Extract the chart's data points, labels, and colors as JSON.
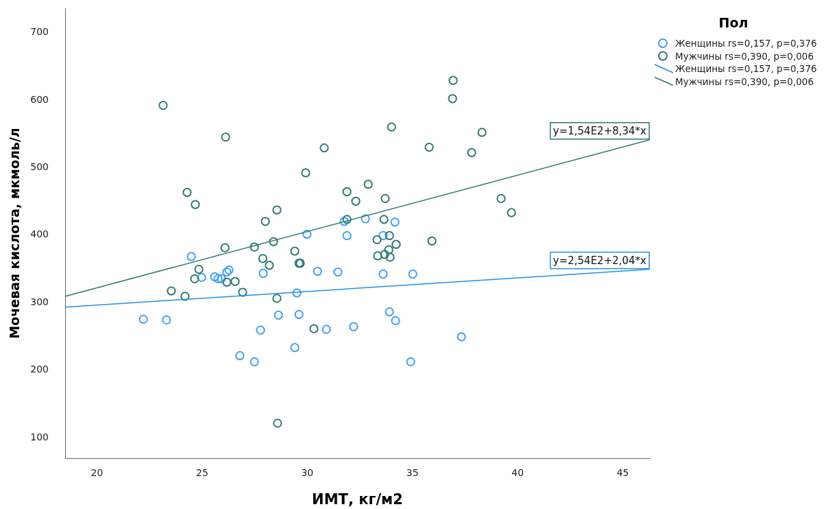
{
  "chart_data": {
    "type": "scatter",
    "xlabel": "ИМТ, кг/м2",
    "ylabel": "Мочевая кислота, мкмоль/л",
    "legend_title": "Пол",
    "legend": "top right",
    "grid": false,
    "marker": "circle",
    "line_style": "solid",
    "xlim": [
      18.5,
      46.3
    ],
    "xticks": [
      20,
      25,
      30,
      35,
      40,
      45
    ],
    "ylim": [
      68,
      735
    ],
    "yticks": [
      100,
      200,
      300,
      400,
      500,
      600,
      700
    ],
    "series": [
      {
        "name": "Женщины rs=0,157, p=0,376",
        "color": "#42a1f5",
        "x": [
          24.5,
          30.0,
          31.77,
          31.9,
          32.78,
          33.62,
          34.18,
          24.99,
          25.61,
          25.77,
          25.93,
          26.19,
          26.29,
          27.92,
          29.52,
          22.22,
          23.32,
          28.64,
          29.62,
          27.79,
          29.42,
          26.81,
          27.5,
          30.5,
          31.47,
          33.62,
          35.03,
          30.92,
          32.22,
          33.92,
          34.21,
          37.34,
          34.93
        ],
        "values": [
          367,
          400,
          419,
          398,
          423,
          398,
          418,
          336,
          337,
          334,
          334,
          344,
          347,
          342,
          313,
          274,
          273,
          280,
          281,
          258,
          232,
          220,
          211,
          345,
          344,
          341,
          341,
          259,
          263,
          285,
          272,
          248,
          211
        ]
      },
      {
        "name": "Мужчины rs=0,390, p=0,006",
        "color": "#2f7a72",
        "x": [
          23.16,
          26.13,
          24.3,
          24.69,
          23.55,
          24.2,
          28.02,
          26.1,
          27.5,
          27.9,
          36.95,
          36.92,
          34.02,
          30.82,
          35.81,
          38.32,
          37.83,
          29.94,
          31.9,
          32.91,
          32.32,
          33.72,
          28.57,
          31.9,
          33.66,
          39.23,
          39.72,
          28.41,
          29.42,
          33.33,
          33.92,
          34.24,
          35.94,
          33.89,
          33.36,
          33.69,
          33.95,
          24.86,
          24.66,
          28.21,
          29.62,
          29.68,
          26.19,
          26.58,
          26.94,
          28.57,
          30.33,
          28.6
        ],
        "values": [
          591,
          544,
          462,
          444,
          316,
          308,
          419,
          380,
          381,
          364,
          628,
          601,
          559,
          528,
          529,
          551,
          521,
          491,
          463,
          474,
          449,
          453,
          436,
          422,
          422,
          453,
          432,
          389,
          375,
          392,
          398,
          385,
          390,
          377,
          368,
          370,
          366,
          348,
          334,
          354,
          357,
          357,
          329,
          330,
          314,
          305,
          260,
          120
        ]
      },
      {
        "type": "line",
        "name": "Женщины rs=0,157, p=0,376",
        "color": "#1e90e8",
        "marker": "none",
        "x": [
          18.5,
          46.3
        ],
        "values": [
          292,
          348
        ]
      },
      {
        "type": "line",
        "name": "Мужчины rs=0,390, p=0,006",
        "color": "#2f7a72",
        "marker": "none",
        "x": [
          18.5,
          46.3
        ],
        "values": [
          308,
          540
        ]
      }
    ],
    "annotations": [
      {
        "text": "y=1,54E2+8,34*x",
        "x": 46.3,
        "y": 540
      },
      {
        "text": "y=2,54E2+2,04*x",
        "x": 46.3,
        "y": 348
      }
    ]
  }
}
